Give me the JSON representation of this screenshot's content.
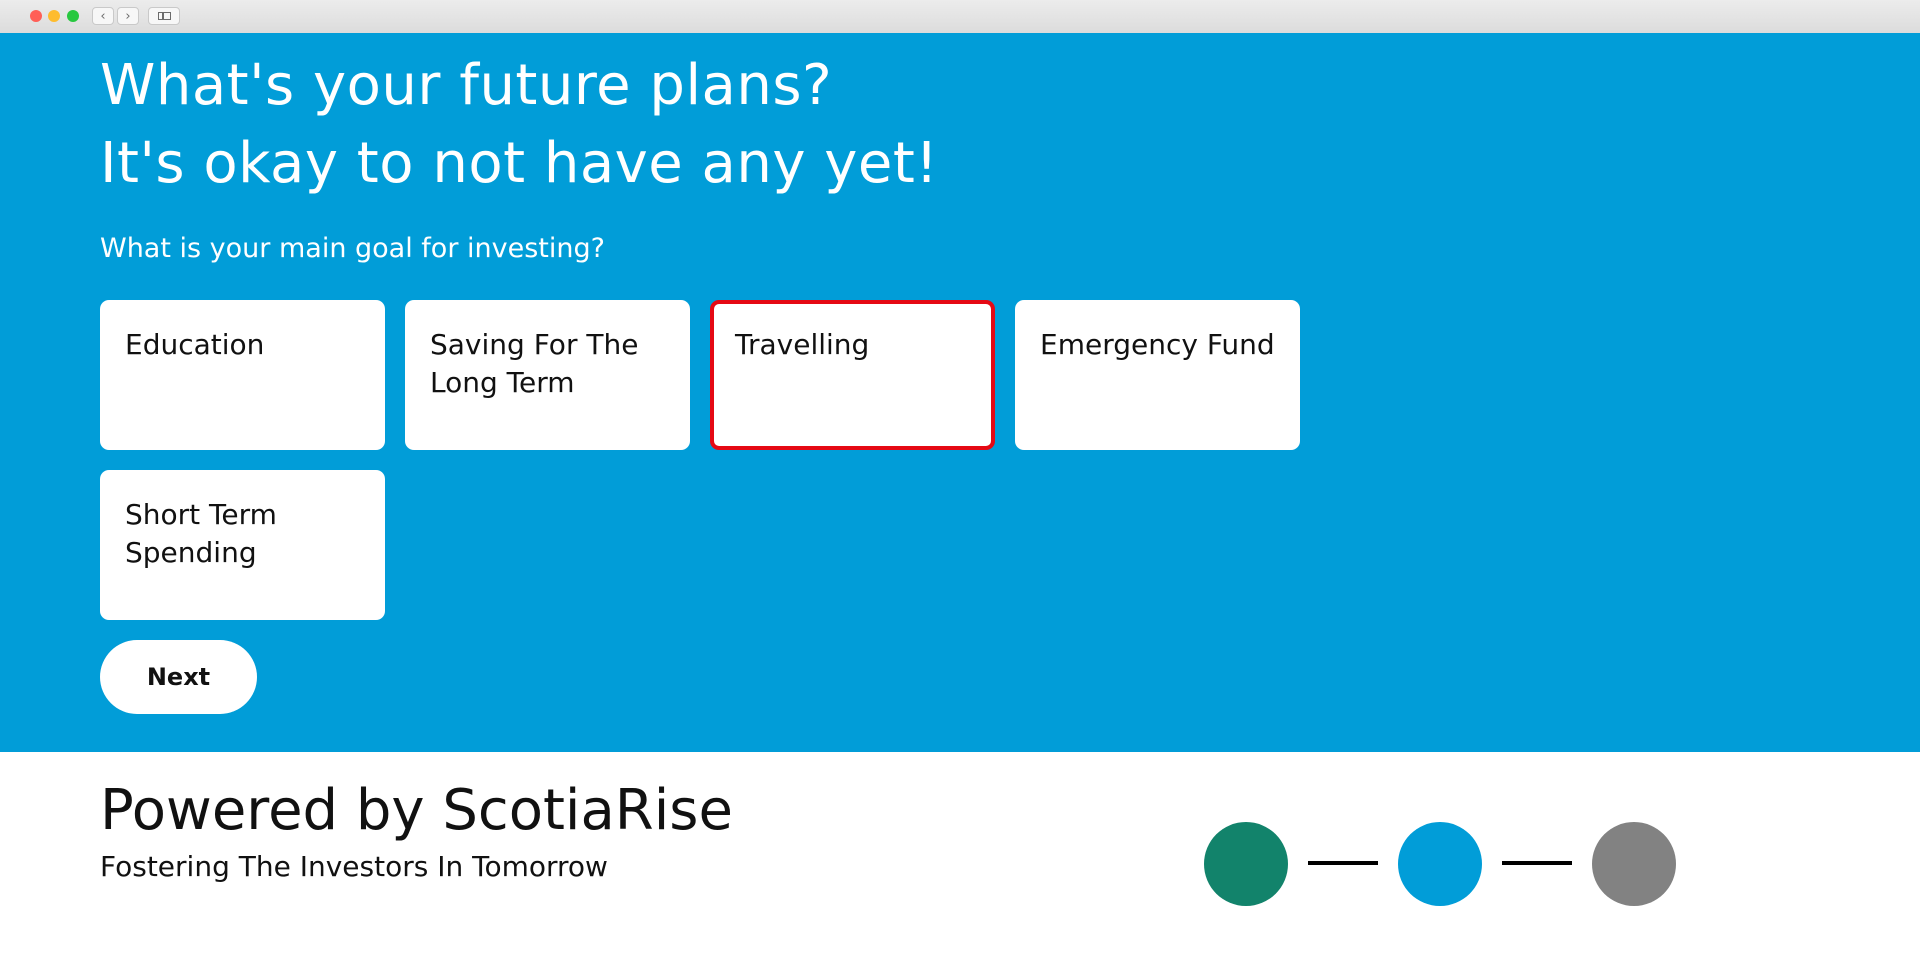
{
  "chrome": {
    "back_glyph": "‹",
    "forward_glyph": "›"
  },
  "hero": {
    "title_line1": "What's your future plans?",
    "title_line2": "It's okay to not have any yet!",
    "question": "What is your main goal for investing?",
    "background_color": "#019dd8",
    "options": [
      {
        "label": "Education",
        "selected": false
      },
      {
        "label": "Saving For The Long Term",
        "selected": false
      },
      {
        "label": "Travelling",
        "selected": true
      },
      {
        "label": "Emergency Fund",
        "selected": false
      },
      {
        "label": "Short Term Spending",
        "selected": false
      }
    ],
    "selected_border_color": "#e50914",
    "next_label": "Next"
  },
  "footer": {
    "brand": "Powered by ScotiaRise",
    "tagline": "Fostering The Investors In Tomorrow",
    "steps": [
      {
        "state": "completed",
        "color": "#12836b"
      },
      {
        "state": "current",
        "color": "#019dd8"
      },
      {
        "state": "upcoming",
        "color": "#828282"
      }
    ]
  }
}
